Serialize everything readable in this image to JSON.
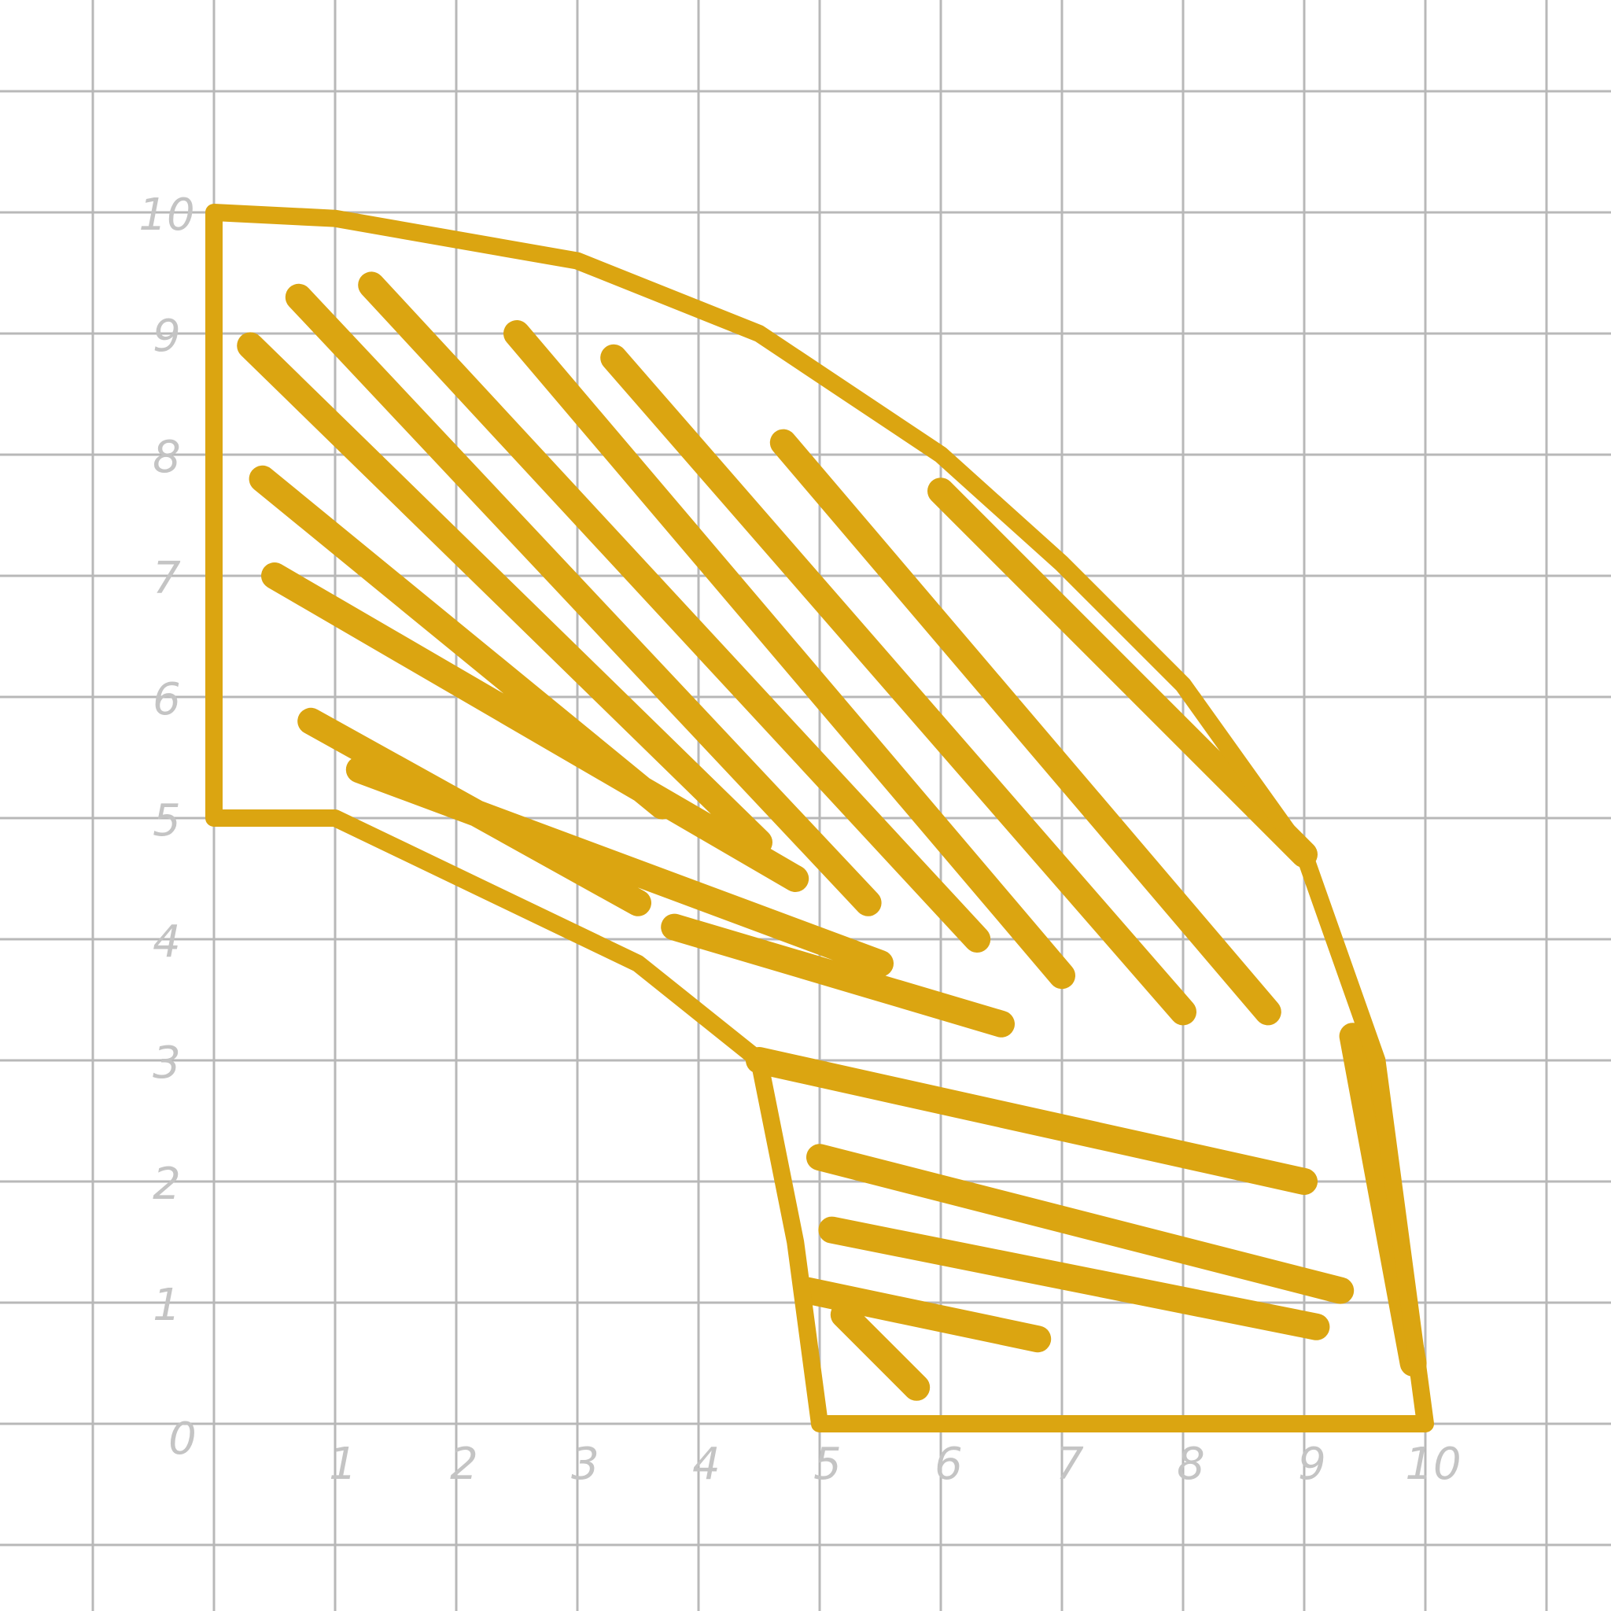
{
  "colors": {
    "background": "#ffffff",
    "grid": "#b8b8b8",
    "tick_label": "#c4c4c4",
    "shape": "#dba511"
  },
  "x_ticks": [
    "0",
    "1",
    "2",
    "3",
    "4",
    "5",
    "6",
    "7",
    "8",
    "9",
    "10"
  ],
  "y_ticks": [
    "10",
    "9",
    "8",
    "7",
    "6",
    "5",
    "4",
    "3",
    "2",
    "1"
  ],
  "region": {
    "fill": "hand-drawn hatching",
    "outline": [
      [
        0,
        10
      ],
      [
        1,
        9.95
      ],
      [
        3,
        9.6
      ],
      [
        4.5,
        9
      ],
      [
        6,
        8
      ],
      [
        7,
        7.1
      ],
      [
        8,
        6.1
      ],
      [
        9,
        4.7
      ],
      [
        9.6,
        3
      ],
      [
        10,
        0
      ],
      [
        5,
        0
      ],
      [
        4.8,
        1.5
      ],
      [
        4.5,
        3
      ],
      [
        3.5,
        3.8
      ],
      [
        1,
        5
      ],
      [
        0,
        5
      ],
      [
        0,
        10
      ]
    ]
  }
}
